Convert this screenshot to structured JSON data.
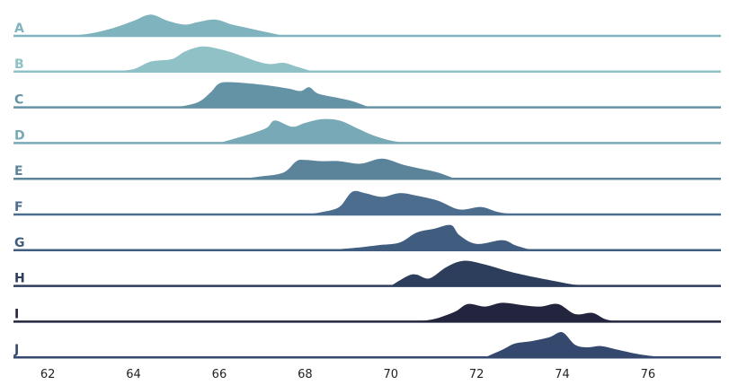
{
  "chart_data": {
    "type": "area",
    "subtype": "ridgeline",
    "title": "",
    "xlabel": "",
    "ylabel": "",
    "xlim": [
      61.2,
      77.7
    ],
    "xticks": [
      62,
      64,
      66,
      68,
      70,
      72,
      74,
      76
    ],
    "grid": false,
    "legend": "none",
    "series": [
      {
        "name": "A",
        "color": "#7fb3bd",
        "x": [
          62.5,
          63.0,
          63.5,
          64.0,
          64.4,
          64.8,
          65.2,
          65.5,
          65.9,
          66.3,
          66.7,
          67.1,
          67.5
        ],
        "density": [
          0,
          0.1,
          0.3,
          0.6,
          0.85,
          0.6,
          0.45,
          0.55,
          0.65,
          0.45,
          0.3,
          0.15,
          0
        ]
      },
      {
        "name": "B",
        "color": "#8fc1c7",
        "x": [
          63.5,
          64.0,
          64.4,
          64.9,
          65.2,
          65.6,
          66.0,
          66.4,
          66.9,
          67.2,
          67.5,
          67.8,
          68.2
        ],
        "density": [
          0,
          0.1,
          0.4,
          0.5,
          0.8,
          1.0,
          0.9,
          0.7,
          0.4,
          0.3,
          0.35,
          0.2,
          0
        ]
      },
      {
        "name": "C",
        "color": "#6593a6",
        "x": [
          65.0,
          65.5,
          65.8,
          66.0,
          66.3,
          67.0,
          67.6,
          67.9,
          68.1,
          68.3,
          68.7,
          69.1,
          69.5
        ],
        "density": [
          0,
          0.2,
          0.6,
          0.95,
          1.0,
          0.9,
          0.75,
          0.65,
          0.8,
          0.55,
          0.4,
          0.25,
          0
        ]
      },
      {
        "name": "D",
        "color": "#78a9b6",
        "x": [
          66.0,
          66.3,
          66.7,
          67.1,
          67.3,
          67.7,
          68.0,
          68.4,
          68.8,
          69.2,
          69.6,
          70.0,
          70.4
        ],
        "density": [
          0,
          0.15,
          0.35,
          0.6,
          0.9,
          0.65,
          0.8,
          0.95,
          0.9,
          0.6,
          0.3,
          0.1,
          0
        ]
      },
      {
        "name": "E",
        "color": "#5b849b",
        "x": [
          66.5,
          67.0,
          67.5,
          67.8,
          68.0,
          68.4,
          68.8,
          69.3,
          69.8,
          70.3,
          70.7,
          71.1,
          71.5
        ],
        "density": [
          0,
          0.1,
          0.25,
          0.7,
          0.75,
          0.7,
          0.7,
          0.6,
          0.8,
          0.55,
          0.4,
          0.25,
          0
        ]
      },
      {
        "name": "F",
        "color": "#4d6d8e",
        "x": [
          68.0,
          68.4,
          68.8,
          69.1,
          69.4,
          69.8,
          70.2,
          70.6,
          71.1,
          71.6,
          72.1,
          72.5,
          72.9
        ],
        "density": [
          0,
          0.1,
          0.3,
          0.9,
          0.85,
          0.7,
          0.85,
          0.75,
          0.55,
          0.2,
          0.3,
          0.1,
          0
        ]
      },
      {
        "name": "G",
        "color": "#405d80",
        "x": [
          68.5,
          69.2,
          69.7,
          70.2,
          70.6,
          71.0,
          71.4,
          71.6,
          72.0,
          72.6,
          72.9,
          73.2,
          73.4
        ],
        "density": [
          0,
          0.1,
          0.2,
          0.3,
          0.7,
          0.85,
          1.0,
          0.6,
          0.25,
          0.4,
          0.2,
          0.05,
          0
        ]
      },
      {
        "name": "H",
        "color": "#2d3d5c",
        "x": [
          70.0,
          70.4,
          70.6,
          70.9,
          71.3,
          71.7,
          72.2,
          72.7,
          73.2,
          73.8,
          74.3,
          74.8,
          75.3
        ],
        "density": [
          0,
          0.4,
          0.45,
          0.3,
          0.75,
          1.0,
          0.85,
          0.6,
          0.4,
          0.2,
          0.05,
          0.02,
          0
        ]
      },
      {
        "name": "I",
        "color": "#23243d",
        "x": [
          70.5,
          71.0,
          71.5,
          71.8,
          72.2,
          72.6,
          73.1,
          73.5,
          73.9,
          74.3,
          74.7,
          75.0,
          75.3
        ],
        "density": [
          0,
          0.1,
          0.4,
          0.7,
          0.6,
          0.75,
          0.65,
          0.6,
          0.7,
          0.3,
          0.35,
          0.1,
          0
        ]
      },
      {
        "name": "J",
        "color": "#34496d",
        "x": [
          72.2,
          72.6,
          72.9,
          73.3,
          73.7,
          74.0,
          74.3,
          74.6,
          74.9,
          75.3,
          75.7,
          76.1,
          76.4
        ],
        "density": [
          0,
          0.3,
          0.55,
          0.65,
          0.8,
          1.0,
          0.5,
          0.4,
          0.45,
          0.3,
          0.15,
          0.05,
          0
        ]
      }
    ]
  }
}
